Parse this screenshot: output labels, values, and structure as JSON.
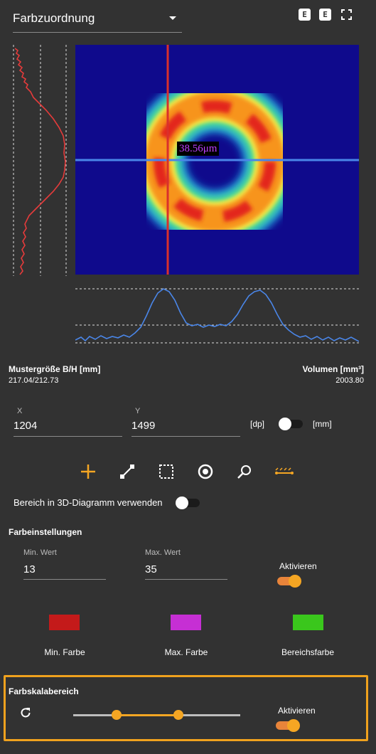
{
  "header": {
    "select_label": "Farbzuordnung",
    "icons": [
      "export-e-icon",
      "export-e-icon",
      "fullscreen-icon"
    ],
    "icon_letter": "E"
  },
  "plot": {
    "measurement_label": "38.56μm"
  },
  "stats": {
    "size_label": "Mustergröße B/H [mm]",
    "size_value": "217.04/212.73",
    "volume_label": "Volumen [mm³]",
    "volume_value": "2003.80"
  },
  "coords": {
    "x_caption": "X",
    "x_value": "1204",
    "y_caption": "Y",
    "y_value": "1499",
    "unit_left": "[dp]",
    "unit_right": "[mm]"
  },
  "toolbar": {
    "tools": [
      "crosshair-plus-icon",
      "line-measure-icon",
      "rectangle-select-icon",
      "circle-select-icon",
      "zoom-icon",
      "profile-line-icon"
    ],
    "accent": "#f5a623"
  },
  "area3d": {
    "label": "Bereich in 3D-Diagramm verwenden"
  },
  "color_settings": {
    "title": "Farbeinstellungen",
    "min_caption": "Min. Wert",
    "min_value": "13",
    "max_caption": "Max. Wert",
    "max_value": "35",
    "activate_label": "Aktivieren",
    "swatches": [
      {
        "label": "Min. Farbe",
        "color": "#c41a1a"
      },
      {
        "label": "Max. Farbe",
        "color": "#c62fd4"
      },
      {
        "label": "Bereichsfarbe",
        "color": "#3ac71c"
      }
    ]
  },
  "color_range": {
    "title": "Farbskalabereich",
    "activate_label": "Aktivieren",
    "slider_low": 0.26,
    "slider_high": 0.63,
    "highlight_color": "#f0a21e"
  }
}
